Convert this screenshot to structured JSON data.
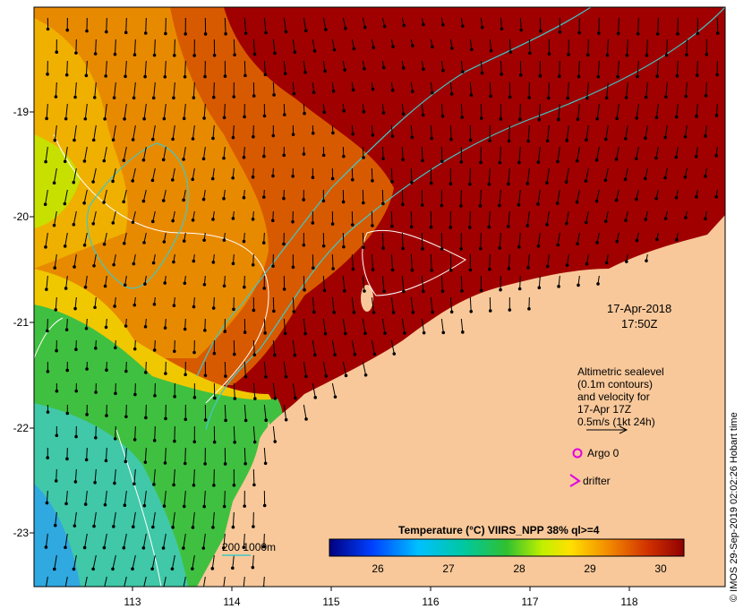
{
  "map": {
    "xticks": [
      "113",
      "114",
      "115",
      "116",
      "117",
      "118"
    ],
    "yticks": [
      "-19",
      "-20",
      "-21",
      "-22",
      "-23"
    ],
    "date": "17-Apr-2018",
    "time": "17:50Z",
    "altimetry_lines": [
      "Altimetric sealevel",
      "(0.1m contours)",
      "and velocity for",
      "17-Apr 17Z",
      "0.5m/s (1kt 24h)"
    ],
    "argo_label": "Argo 0",
    "drifter_label": "drifter",
    "isobath_label": "200  1000m",
    "colorbar_title": "Temperature (°C) VIIRS_NPP 38% ql>=4",
    "colorbar_ticks": [
      "26",
      "27",
      "28",
      "29",
      "30"
    ],
    "credit": "© IMOS 29-Sep-2019 02:02:26 Hobart time",
    "colors": {
      "land": "#f8c89a",
      "hot": "#a00000",
      "warm": "#e06a00",
      "mid": "#f0a000",
      "cool": "#30c050",
      "cold": "#30b8c8",
      "isobath": "#40c8c8",
      "argo": "#e000e0"
    }
  }
}
